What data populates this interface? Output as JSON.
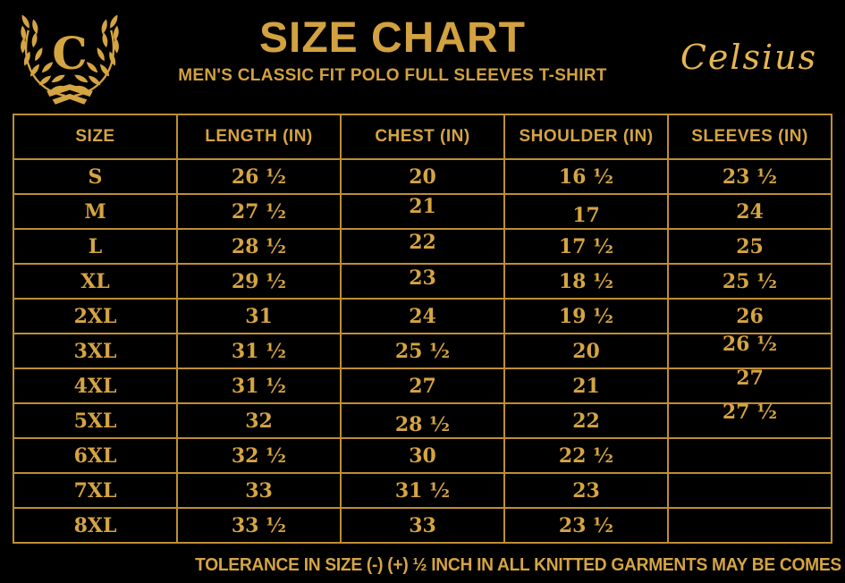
{
  "colors": {
    "background": "#000000",
    "gold_text": "#d5a443",
    "gold_bright": "#e5b554",
    "table_border": "#bd8f33"
  },
  "header": {
    "title": "SIZE CHART",
    "subtitle": "MEN'S CLASSIC FIT POLO FULL SLEEVES T-SHIRT",
    "brand": "Celsius",
    "logo_icon": "laurel-wreath-monogram",
    "logo_letter": "C"
  },
  "table": {
    "columns": [
      "SIZE",
      "LENGTH (IN)",
      "CHEST (IN)",
      "SHOULDER (IN)",
      "SLEEVES (IN)"
    ],
    "rows": [
      {
        "size": "S",
        "length": "26 ½",
        "chest": "20",
        "shoulder": "16 ½",
        "sleeves": "23 ½"
      },
      {
        "size": "M",
        "length": "27 ½",
        "chest": "21",
        "shoulder": "17",
        "sleeves": "24"
      },
      {
        "size": "L",
        "length": "28 ½",
        "chest": "22",
        "shoulder": "17 ½",
        "sleeves": "25"
      },
      {
        "size": "XL",
        "length": "29 ½",
        "chest": "23",
        "shoulder": "18 ½",
        "sleeves": "25 ½"
      },
      {
        "size": "2XL",
        "length": "31",
        "chest": "24",
        "shoulder": "19 ½",
        "sleeves": "26"
      },
      {
        "size": "3XL",
        "length": "31 ½",
        "chest": "25 ½",
        "shoulder": "20",
        "sleeves": "26 ½"
      },
      {
        "size": "4XL",
        "length": "31 ½",
        "chest": "27",
        "shoulder": "21",
        "sleeves": "27"
      },
      {
        "size": "5XL",
        "length": "32",
        "chest": "28 ½",
        "shoulder": "22",
        "sleeves": "27 ½"
      },
      {
        "size": "6XL",
        "length": "32 ½",
        "chest": "30",
        "shoulder": "22 ½",
        "sleeves": ""
      },
      {
        "size": "7XL",
        "length": "33",
        "chest": "31 ½",
        "shoulder": "23",
        "sleeves": ""
      },
      {
        "size": "8XL",
        "length": "33 ½",
        "chest": "33",
        "shoulder": "23 ½",
        "sleeves": ""
      }
    ]
  },
  "footer": {
    "note": "TOLERANCE IN SIZE (-) (+)  ½ INCH IN ALL KNITTED GARMENTS MAY BE COMES"
  }
}
